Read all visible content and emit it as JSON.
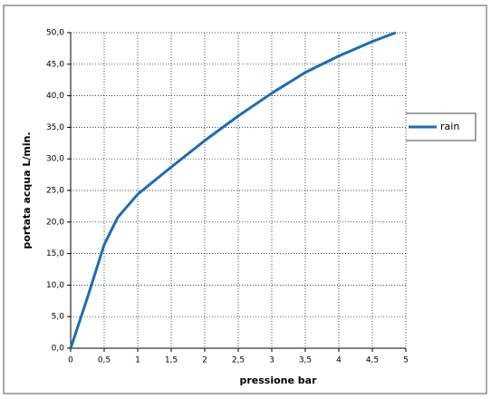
{
  "chart_data": {
    "type": "line",
    "x_label": "pressione bar",
    "y_label": "portata acqua  L/min.",
    "series": [
      {
        "name": "rain",
        "color": "#1b6db3",
        "x": [
          0,
          0.25,
          0.5,
          0.7,
          1,
          1.5,
          2,
          2.5,
          3,
          3.5,
          4,
          4.5,
          4.85
        ],
        "values": [
          0,
          8,
          16.4,
          20.7,
          24.4,
          28.7,
          32.9,
          36.8,
          40.4,
          43.7,
          46.3,
          48.6,
          50
        ]
      }
    ],
    "xlim": [
      0,
      5
    ],
    "xticks": [
      0,
      {
        "value": 0.5,
        "label": "0,5"
      },
      1,
      {
        "value": 1.5,
        "label": "1,5"
      },
      2,
      {
        "value": 2.5,
        "label": "2,5"
      },
      3,
      {
        "value": 3.5,
        "label": "3,5"
      },
      4,
      {
        "value": 4.5,
        "label": "4,5"
      },
      5
    ],
    "ylim": [
      0,
      50
    ],
    "yticks": [
      {
        "value": 0,
        "label": "0,0"
      },
      {
        "value": 5,
        "label": "5,0"
      },
      {
        "value": 10,
        "label": "10,0"
      },
      {
        "value": 15,
        "label": "15,0"
      },
      {
        "value": 20,
        "label": "20,0"
      },
      {
        "value": 25,
        "label": "25,0"
      },
      {
        "value": 30,
        "label": "30,0"
      },
      {
        "value": 35,
        "label": "35,0"
      },
      {
        "value": 40,
        "label": "40,0"
      },
      {
        "value": 45,
        "label": "45,0"
      },
      {
        "value": 50,
        "label": "50,0"
      }
    ],
    "grid": true,
    "legend": "right"
  }
}
